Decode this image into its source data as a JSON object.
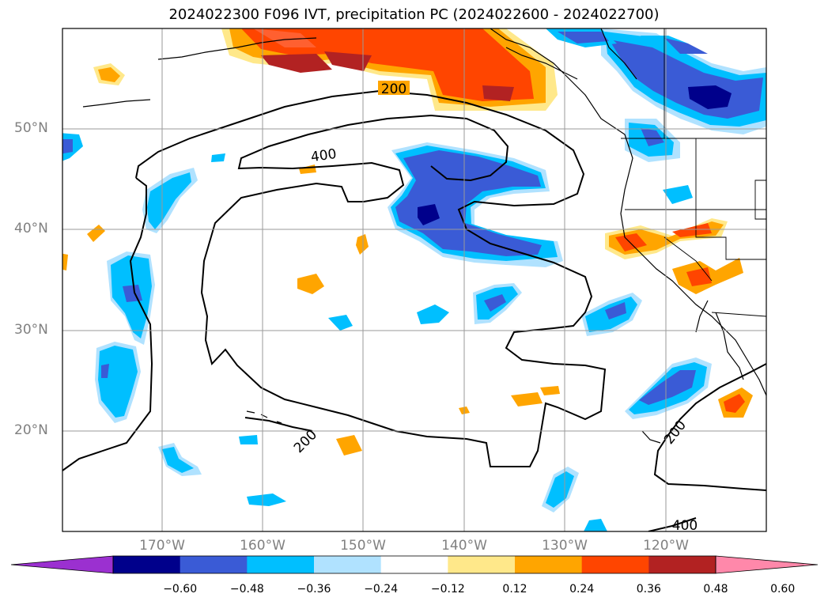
{
  "title": "2024022300 F096 IVT, precipitation PC (2024022600 - 2024022700)",
  "lat_labels": [
    "50°N",
    "40°N",
    "30°N",
    "20°N"
  ],
  "lon_labels": [
    "170°W",
    "160°W",
    "150°W",
    "140°W",
    "130°W",
    "120°W"
  ],
  "contour_labels": [
    "200",
    "400",
    "200",
    "200",
    "400"
  ],
  "colorbar": {
    "ticks": [
      "−0.60",
      "−0.48",
      "−0.36",
      "−0.24",
      "−0.12",
      "0.12",
      "0.24",
      "0.36",
      "0.48",
      "0.60"
    ],
    "colors": [
      "#9b30d0",
      "#00008b",
      "#3a5bd6",
      "#00bfff",
      "#b0e2ff",
      "#ffffff",
      "#ffe88a",
      "#ffa500",
      "#ff4500",
      "#b22222",
      "#ff88aa"
    ]
  }
}
